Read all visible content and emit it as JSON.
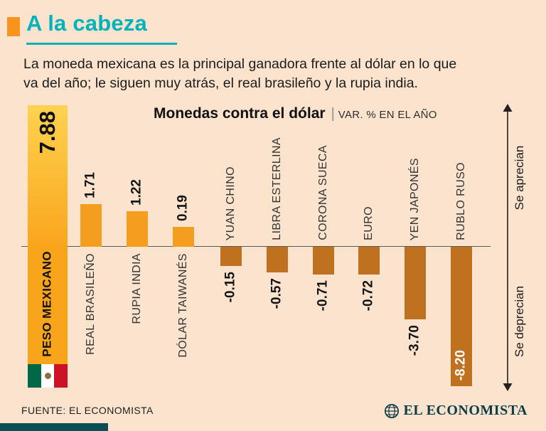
{
  "header": {
    "title": "A la cabeza",
    "lede_line1": "La moneda mexicana es la principal ganadora frente al dólar en lo que",
    "lede_line2": "va del año; le siguen muy atrás, el real brasileño y la rupia india."
  },
  "chart_header": {
    "title": "Monedas contra el dólar",
    "separator": "|",
    "unit": "VAR. % EN EL AÑO"
  },
  "chart_data": {
    "type": "bar",
    "title": "Monedas contra el dólar",
    "subtitle": "VAR. % EN EL AÑO",
    "xlabel": "",
    "ylabel": "VAR. % EN EL AÑO",
    "categories": [
      "PESO MEXICANO",
      "REAL BRASILEÑO",
      "RUPIA INDIA",
      "DÓLAR TAIWANÉS",
      "YUAN CHINO",
      "LIBRA ESTERLINA",
      "CORONA SUECA",
      "EURO",
      "YEN JAPONÉS",
      "RUBLO RUSO"
    ],
    "values": [
      7.88,
      1.71,
      1.22,
      0.19,
      -0.15,
      -0.57,
      -0.71,
      -0.72,
      -3.7,
      -8.2
    ],
    "value_labels": [
      "7.88",
      "1.71",
      "1.22",
      "0.19",
      "-0.15",
      "-0.57",
      "-0.71",
      "-0.72",
      "-3.70",
      "-8.20"
    ],
    "highlight_category": "PESO MEXICANO",
    "baseline": 0,
    "ylim": [
      -8.2,
      7.88
    ],
    "grid": false,
    "legend": "none",
    "annotations": [
      "Se aprecian",
      "Se deprecian"
    ],
    "colors": {
      "highlight": "#f9a51c",
      "highlight_top": "#ffd24f",
      "positive": "#f59d1f",
      "negative": "#bf7120"
    }
  },
  "axis_labels": {
    "appreciate": "Se aprecian",
    "depreciate": "Se deprecian"
  },
  "flag": {
    "green": "#006847",
    "white": "#ffffff",
    "red": "#ce1126"
  },
  "footer": {
    "source": "FUENTE: EL ECONOMISTA",
    "brand": "EL ECONOMISTA"
  },
  "theme": {
    "background": "#fbe3cd",
    "accent_teal": "#00b2bc",
    "accent_orange": "#f7941e",
    "footer_strip": "#0b4f55"
  }
}
